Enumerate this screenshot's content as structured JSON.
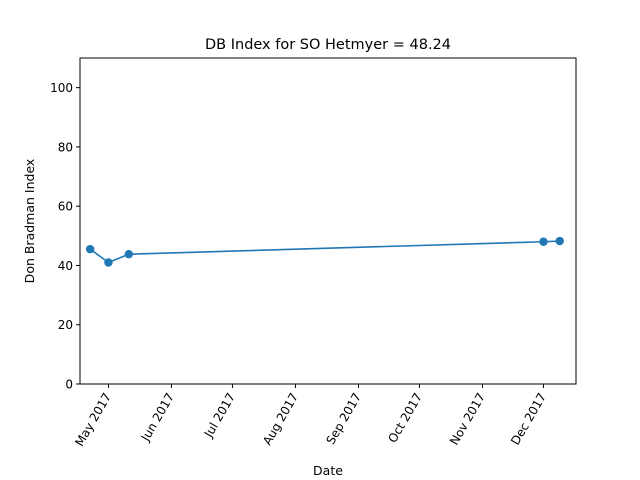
{
  "chart_data": {
    "type": "line",
    "title": "DB Index for SO Hetmyer = 48.24",
    "xlabel": "Date",
    "ylabel": "Don Bradman Index",
    "ylim": [
      0,
      110
    ],
    "yticks": [
      0,
      20,
      40,
      60,
      80,
      100
    ],
    "xlim": [
      "2017-04-17",
      "2017-12-17"
    ],
    "xticks": [
      {
        "date": "2017-05-01",
        "label": "May 2017"
      },
      {
        "date": "2017-06-01",
        "label": "Jun 2017"
      },
      {
        "date": "2017-07-01",
        "label": "Jul 2017"
      },
      {
        "date": "2017-08-01",
        "label": "Aug 2017"
      },
      {
        "date": "2017-09-01",
        "label": "Sep 2017"
      },
      {
        "date": "2017-10-01",
        "label": "Oct 2017"
      },
      {
        "date": "2017-11-01",
        "label": "Nov 2017"
      },
      {
        "date": "2017-12-01",
        "label": "Dec 2017"
      }
    ],
    "series": [
      {
        "color": "#1f77b4",
        "marker": "circle",
        "x": [
          "2017-04-22",
          "2017-05-01",
          "2017-05-11",
          "2017-12-01",
          "2017-12-09"
        ],
        "y": [
          45.5,
          41.0,
          43.8,
          48.0,
          48.24
        ]
      }
    ],
    "grid": false
  }
}
